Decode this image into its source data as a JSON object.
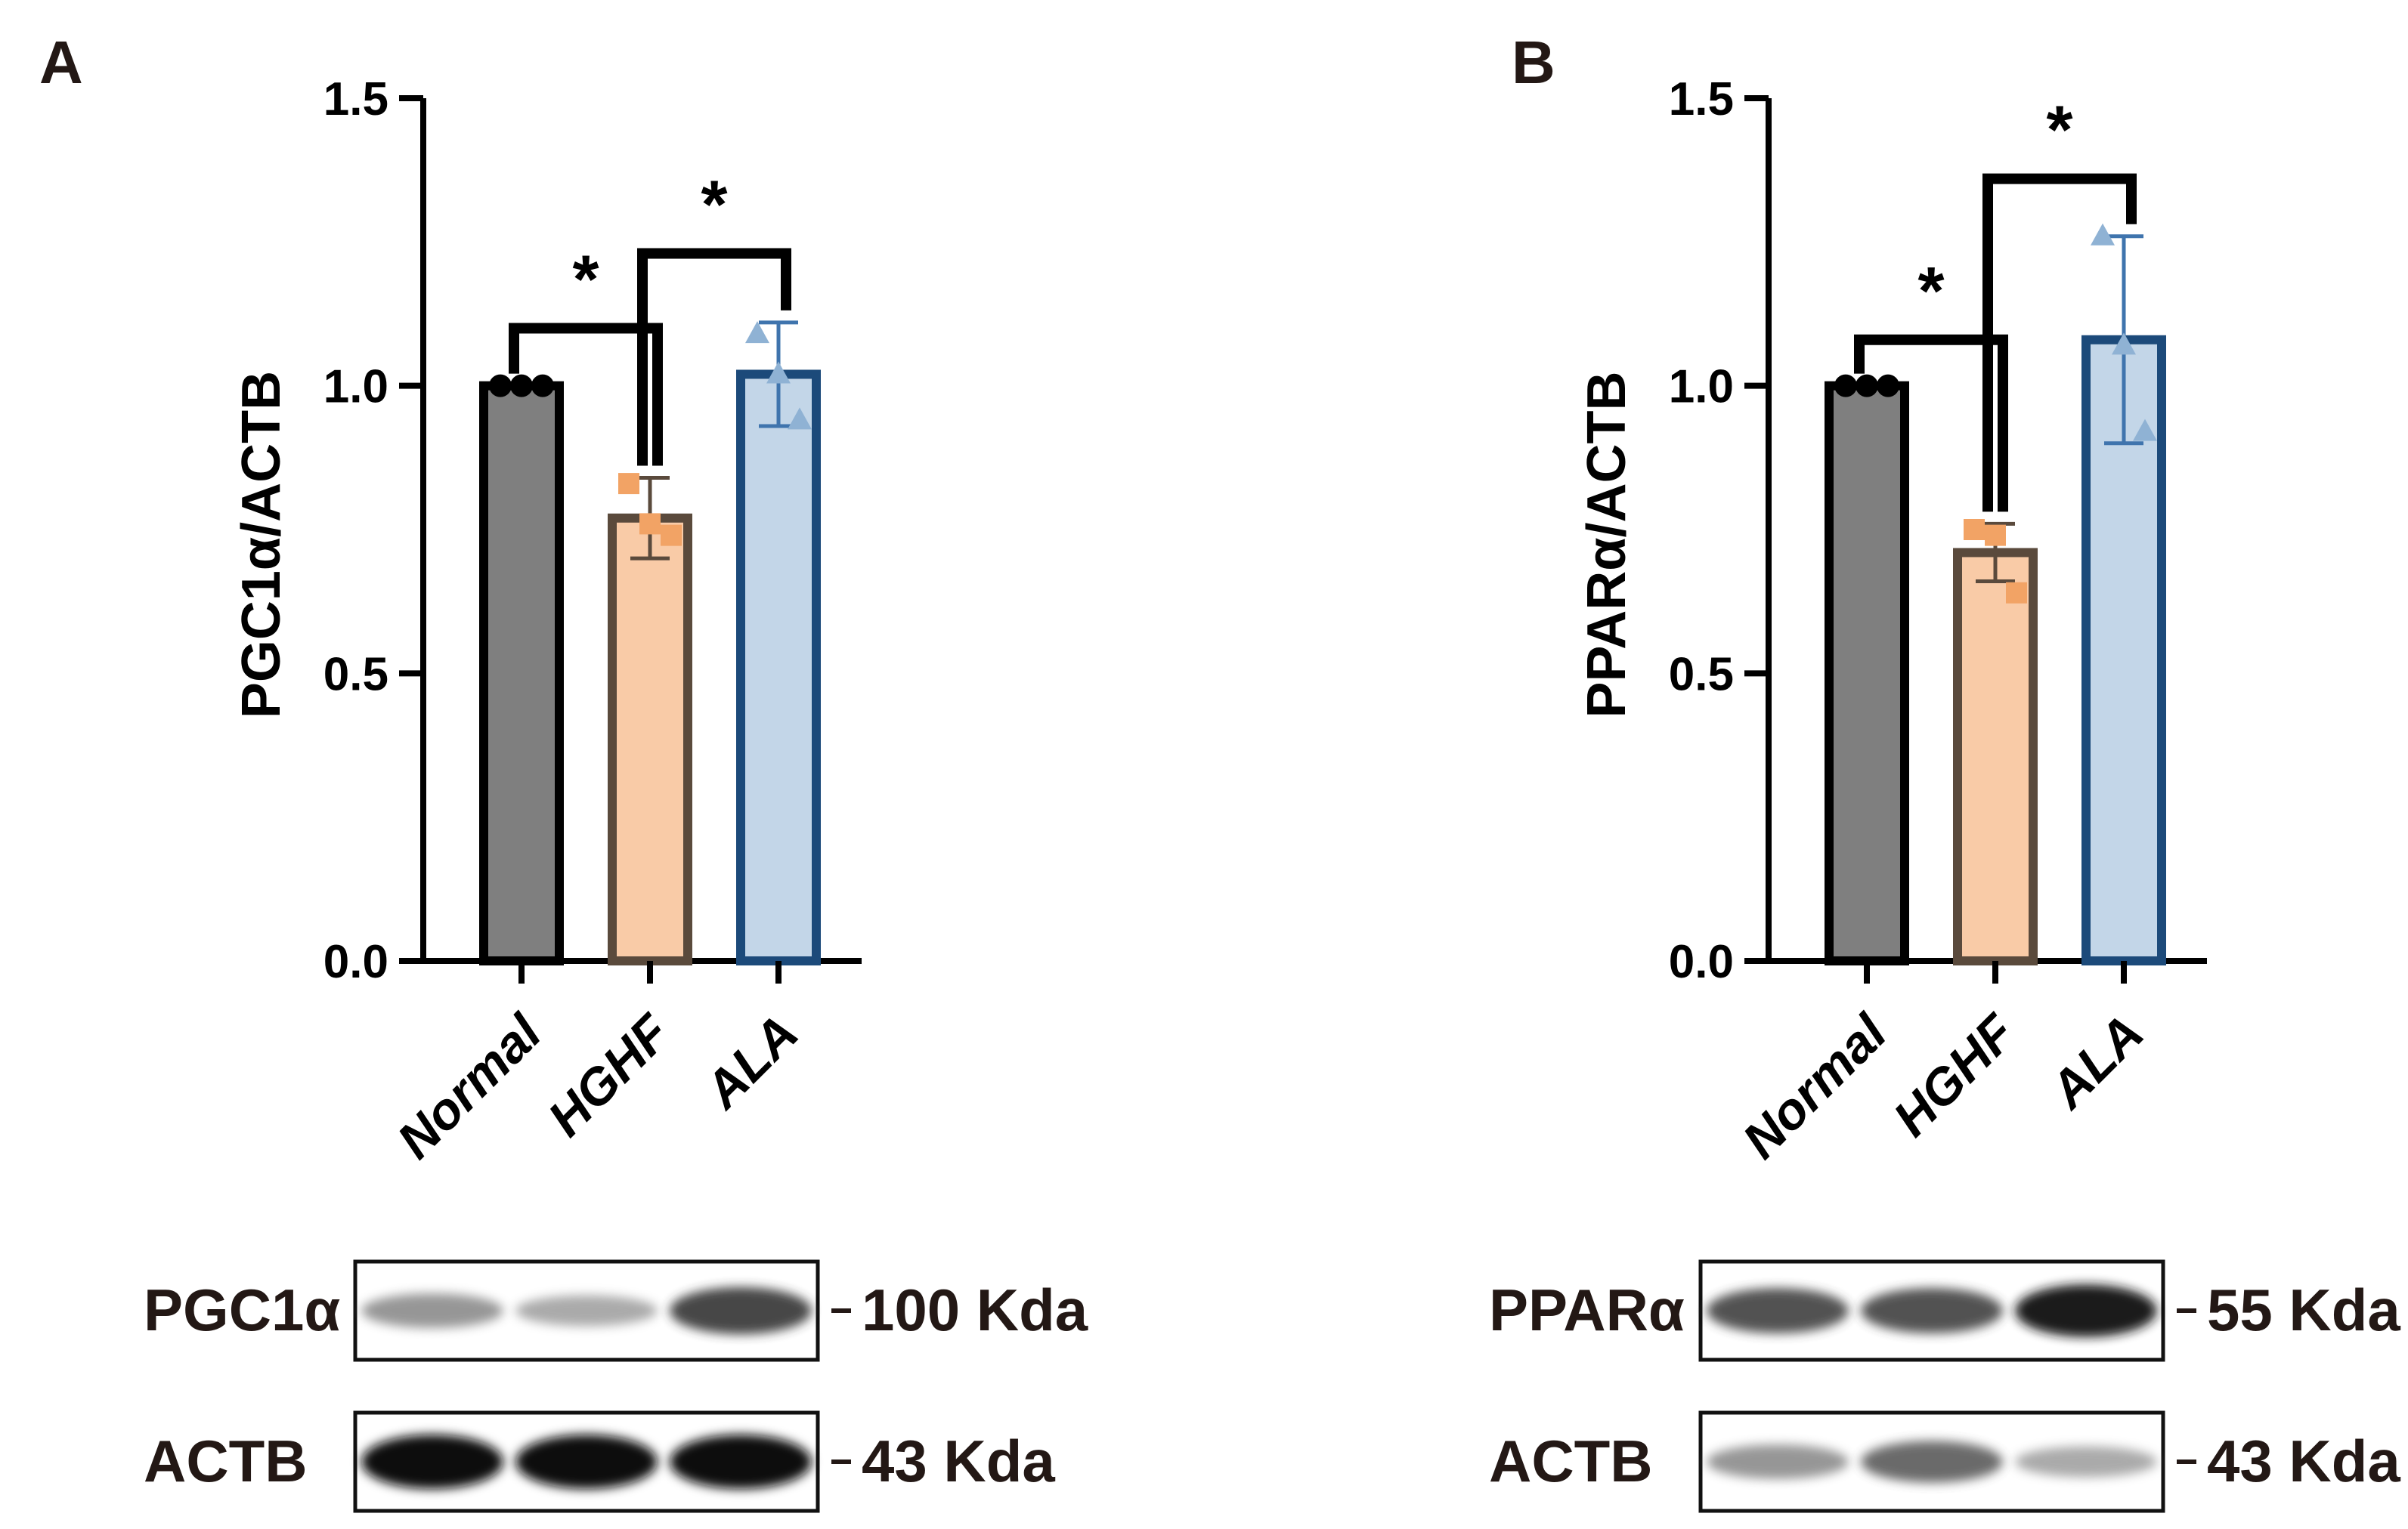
{
  "figure": {
    "colors": {
      "axis": "#000000",
      "text": "#231815",
      "bar_fills": [
        "#7f7f7f",
        "#f9cba7",
        "#c3d6e8"
      ],
      "bar_strokes": [
        "#000000",
        "#5a4a3c",
        "#1c4a7a"
      ],
      "point_colors": [
        "#000000",
        "#f2a365",
        "#8fb2d4"
      ],
      "errorbar_colors": [
        "#000000",
        "#5a4a3c",
        "#3f74ad"
      ]
    }
  },
  "chart_data": [
    {
      "panel_label": "A",
      "type": "bar",
      "categories": [
        "Normal",
        "HGHF",
        "ALA"
      ],
      "values": [
        1.0,
        0.77,
        1.02
      ],
      "error_sd": [
        0.0,
        0.07,
        0.09
      ],
      "points": [
        [
          1.0,
          1.0,
          1.0
        ],
        [
          0.83,
          0.76,
          0.74
        ],
        [
          1.09,
          1.02,
          0.94
        ]
      ],
      "title": "",
      "xlabel": "",
      "ylabel": "PGC1α/ACTB",
      "ylim": [
        0,
        1.5
      ],
      "yticks": [
        "0.0",
        "0.5",
        "1.0",
        "1.5"
      ],
      "grid": false,
      "legend": "none",
      "significance": [
        {
          "from": 0,
          "to": 1,
          "label": "*",
          "y": 1.1
        },
        {
          "from": 1,
          "to": 2,
          "label": "*",
          "y": 1.23
        }
      ],
      "blot": {
        "rows": [
          {
            "label": "PGC1α",
            "size": "100 Kda",
            "intensity": [
              0.45,
              0.35,
              0.8
            ]
          },
          {
            "label": "ACTB",
            "size": "43 Kda",
            "intensity": [
              1.0,
              1.0,
              1.0
            ]
          }
        ]
      }
    },
    {
      "panel_label": "B",
      "type": "bar",
      "categories": [
        "Normal",
        "HGHF",
        "ALA"
      ],
      "values": [
        1.0,
        0.71,
        1.08
      ],
      "error_sd": [
        0.0,
        0.05,
        0.18
      ],
      "points": [
        [
          1.0,
          1.0,
          1.0
        ],
        [
          0.75,
          0.74,
          0.64
        ],
        [
          1.26,
          1.07,
          0.92
        ]
      ],
      "title": "",
      "xlabel": "",
      "ylabel": "PPARα/ACTB",
      "ylim": [
        0,
        1.5
      ],
      "yticks": [
        "0.0",
        "0.5",
        "1.0",
        "1.5"
      ],
      "grid": false,
      "legend": "none",
      "significance": [
        {
          "from": 0,
          "to": 1,
          "label": "*",
          "y": 1.08
        },
        {
          "from": 1,
          "to": 2,
          "label": "*",
          "y": 1.36
        }
      ],
      "blot": {
        "rows": [
          {
            "label": "PPARα",
            "size": "55 Kda",
            "intensity": [
              0.75,
              0.75,
              0.95
            ]
          },
          {
            "label": "ACTB",
            "size": "43 Kda",
            "intensity": [
              0.45,
              0.65,
              0.35
            ]
          }
        ]
      }
    }
  ]
}
